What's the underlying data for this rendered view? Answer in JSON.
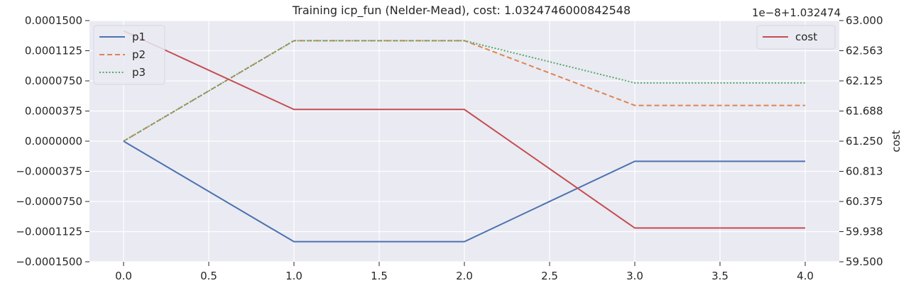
{
  "chart_data": {
    "type": "line",
    "title": "Training icp_fun (Nelder-Mead), cost: 1.0324746000842548",
    "x": [
      0,
      1,
      2,
      3,
      4
    ],
    "xlim": [
      -0.2,
      4.2
    ],
    "xticks": [
      "0.0",
      "0.5",
      "1.0",
      "1.5",
      "2.0",
      "2.5",
      "3.0",
      "3.5",
      "4.0"
    ],
    "left_axis": {
      "ylim": [
        -0.00015,
        0.00015
      ],
      "ticks": [
        "0.0001500",
        "0.0001125",
        "0.0000750",
        "0.0000375",
        "0.0000000",
        "−0.0000375",
        "−0.0000750",
        "−0.0001125",
        "−0.0001500"
      ]
    },
    "right_axis": {
      "label": "cost",
      "offset_text": "1e−8+1.032474",
      "ylim": [
        59.5,
        63.0
      ],
      "ticks": [
        "63.000",
        "62.563",
        "62.125",
        "61.688",
        "61.250",
        "60.813",
        "60.375",
        "59.938",
        "59.500"
      ]
    },
    "series": [
      {
        "name": "p1",
        "axis": "left",
        "color": "#4c72b0",
        "dash": "solid",
        "values": [
          0,
          -0.000125,
          -0.000125,
          -2.5e-05,
          -2.5e-05
        ]
      },
      {
        "name": "p2",
        "axis": "left",
        "color": "#dd8452",
        "dash": "dashed",
        "values": [
          0,
          0.000125,
          0.000125,
          4.45e-05,
          4.45e-05
        ]
      },
      {
        "name": "p3",
        "axis": "left",
        "color": "#55a868",
        "dash": "dotted",
        "values": [
          0,
          0.000125,
          0.000125,
          7.25e-05,
          7.25e-05
        ]
      },
      {
        "name": "cost",
        "axis": "right",
        "color": "#c44e52",
        "dash": "solid",
        "values": [
          62.85,
          61.71,
          61.71,
          59.99,
          59.99
        ]
      }
    ],
    "grid": true,
    "legends": [
      "top-left",
      "top-right"
    ]
  }
}
